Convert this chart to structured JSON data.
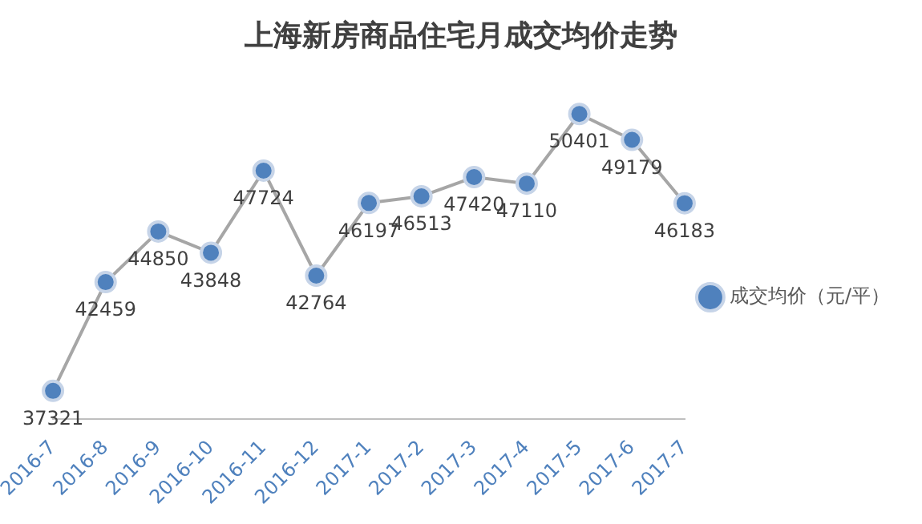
{
  "chart_data": {
    "type": "line",
    "title": "上海新房商品住宅月成交均价走势",
    "categories": [
      "2016-7",
      "2016-8",
      "2016-9",
      "2016-10",
      "2016-11",
      "2016-12",
      "2017-1",
      "2017-2",
      "2017-3",
      "2017-4",
      "2017-5",
      "2017-6",
      "2017-7"
    ],
    "series": [
      {
        "name": "成交均价（元/平）",
        "color": "#4f81bd",
        "values": [
          37321,
          42459,
          44850,
          43848,
          47724,
          42764,
          46197,
          46513,
          47420,
          47110,
          50401,
          49179,
          46183
        ]
      }
    ],
    "data_labels": true,
    "marker": "circle",
    "grid": false,
    "legend": "right",
    "tick_labels": "x"
  }
}
